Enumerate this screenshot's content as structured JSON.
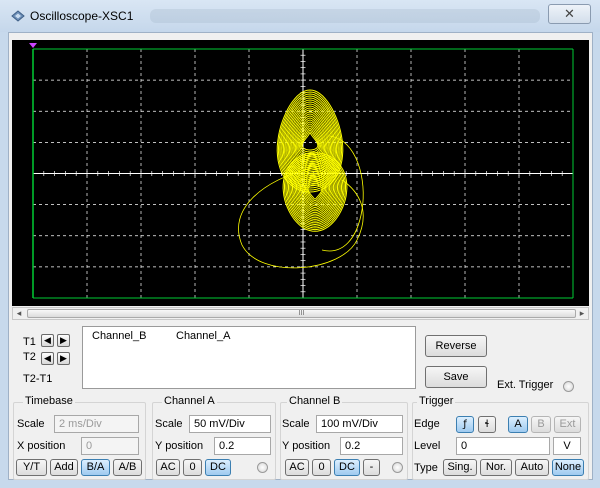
{
  "window": {
    "title": "Oscilloscope-XSC1",
    "close_symbol": "✕"
  },
  "icons": {
    "title_icon": "oscilloscope-icon",
    "close": "close-icon",
    "scroll_left": "scroll-left-icon",
    "scroll_right": "scroll-right-icon",
    "arrow_left": "arrow-left-icon",
    "arrow_right": "arrow-right-icon",
    "rising_edge": "rising-edge-icon",
    "falling_edge": "falling-edge-icon",
    "trigger_marker": "trigger-marker-icon"
  },
  "colors": {
    "screen_bg": "#000000",
    "grid": "#ffffff",
    "border_line": "#00cc33",
    "trace": "#ffff00",
    "marker": "#cc44ff"
  },
  "scrollbar": {
    "thumb_grip": "III",
    "left_arrow": "◂",
    "right_arrow": "▸"
  },
  "cursors": {
    "t1_label": "T1",
    "t2_label": "T2",
    "diff_label": "T2-T1",
    "left_glyph": "◀",
    "right_glyph": "▶"
  },
  "channels_header": {
    "col1": "Channel_B",
    "col2": "Channel_A"
  },
  "buttons": {
    "reverse": "Reverse",
    "save": "Save"
  },
  "ext_trigger_label": "Ext. Trigger",
  "timebase": {
    "title": "Timebase",
    "scale_label": "Scale",
    "scale_value": "2 ms/Div",
    "xpos_label": "X position",
    "xpos_value": "0",
    "modes": [
      "Y/T",
      "Add",
      "B/A",
      "A/B"
    ],
    "active_mode": "B/A"
  },
  "channel_a": {
    "title": "Channel A",
    "scale_label": "Scale",
    "scale_value": "50 mV/Div",
    "ypos_label": "Y position",
    "ypos_value": "0.2",
    "coupling": [
      "AC",
      "0",
      "DC"
    ],
    "active_coupling": "DC"
  },
  "channel_b": {
    "title": "Channel B",
    "scale_label": "Scale",
    "scale_value": "100 mV/Div",
    "ypos_label": "Y position",
    "ypos_value": "0.2",
    "coupling": [
      "AC",
      "0",
      "DC",
      "-"
    ],
    "active_coupling": "DC"
  },
  "trigger": {
    "title": "Trigger",
    "edge_label": "Edge",
    "edge_rising": "ƒ",
    "edge_falling": "ɬ",
    "sources": [
      "A",
      "B",
      "Ext"
    ],
    "active_source": "A",
    "level_label": "Level",
    "level_value": "0",
    "level_unit": "V",
    "type_label": "Type",
    "types": [
      "Sing.",
      "Nor.",
      "Auto",
      "None"
    ],
    "active_type": "None"
  }
}
